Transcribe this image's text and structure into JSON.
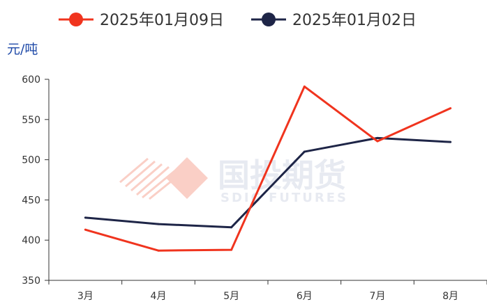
{
  "chart_data": {
    "type": "line",
    "unit": "元/吨",
    "categories": [
      "3月",
      "4月",
      "5月",
      "6月",
      "7月",
      "8月"
    ],
    "series": [
      {
        "name": "2025年01月09日",
        "color": "#f0341e",
        "values": [
          413,
          387,
          388,
          591,
          523,
          564
        ]
      },
      {
        "name": "2025年01月02日",
        "color": "#1e2547",
        "values": [
          428,
          420,
          416,
          510,
          527,
          522
        ]
      }
    ],
    "ylim": [
      350,
      600
    ],
    "yticks": [
      350,
      400,
      450,
      500,
      550,
      600
    ],
    "grid": false,
    "legend_position": "top"
  },
  "watermark": {
    "cn": "国投期货",
    "en": "SDIC FUTURES"
  }
}
